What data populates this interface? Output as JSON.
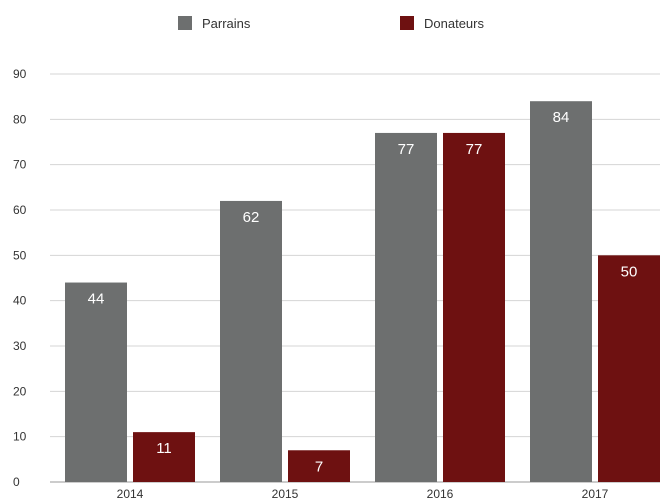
{
  "chart_data": {
    "type": "bar",
    "categories": [
      "2014",
      "2015",
      "2016",
      "2017"
    ],
    "series": [
      {
        "name": "Parrains",
        "values": [
          44,
          62,
          77,
          84
        ],
        "color": "#6d6f6f"
      },
      {
        "name": "Donateurs",
        "values": [
          11,
          7,
          77,
          50
        ],
        "color": "#6e1111"
      }
    ],
    "ylim": [
      0,
      90
    ],
    "yticks": [
      0,
      10,
      20,
      30,
      40,
      50,
      60,
      70,
      80,
      90
    ],
    "grid": true,
    "legend_position": "top",
    "data_labels": true
  }
}
